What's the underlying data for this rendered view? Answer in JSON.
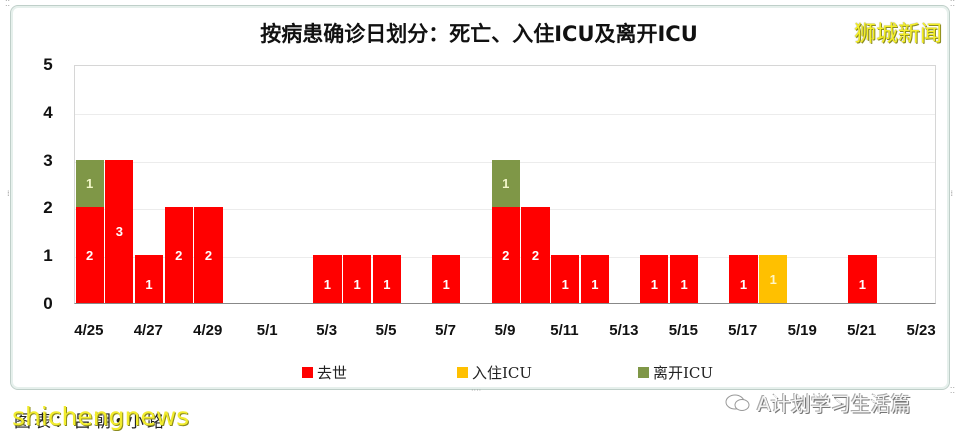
{
  "title": "按病患确诊日划分：死亡、入住ICU及离开ICU",
  "brand_watermark": "狮城新闻",
  "credit": "图表：吕朝•小路",
  "site_watermark": "shichengnews",
  "wechat_watermark": "A计划学习生活篇",
  "colors": {
    "death": "#ff0000",
    "icu_in": "#ffc000",
    "icu_out": "#7f9747"
  },
  "legend": [
    {
      "key": "death",
      "label": "去世",
      "color": "#ff0000"
    },
    {
      "key": "icu_in",
      "label": "入住ICU",
      "color": "#ffc000"
    },
    {
      "key": "icu_out",
      "label": "离开ICU",
      "color": "#7f9747"
    }
  ],
  "chart_data": {
    "type": "bar",
    "stacked": true,
    "title": "按病患确诊日划分：死亡、入住ICU及离开ICU",
    "xlabel": "",
    "ylabel": "",
    "ylim": [
      0,
      5
    ],
    "yticks": [
      "0",
      "1",
      "2",
      "3",
      "4",
      "5"
    ],
    "grid": true,
    "legend_position": "bottom",
    "xtick_labels": [
      "4/25",
      "4/27",
      "4/29",
      "5/1",
      "5/3",
      "5/5",
      "5/7",
      "5/9",
      "5/11",
      "5/13",
      "5/15",
      "5/17",
      "5/19",
      "5/21",
      "5/23"
    ],
    "categories": [
      "4/25",
      "4/26",
      "4/27",
      "4/28",
      "4/29",
      "4/30",
      "5/1",
      "5/2",
      "5/3",
      "5/4",
      "5/5",
      "5/6",
      "5/7",
      "5/8",
      "5/9",
      "5/10",
      "5/11",
      "5/12",
      "5/13",
      "5/14",
      "5/15",
      "5/16",
      "5/17",
      "5/18",
      "5/19",
      "5/20",
      "5/21",
      "5/22",
      "5/23"
    ],
    "series": [
      {
        "name": "去世",
        "color": "#ff0000",
        "values": [
          2,
          3,
          1,
          2,
          2,
          0,
          0,
          0,
          1,
          1,
          1,
          0,
          1,
          0,
          2,
          2,
          1,
          1,
          0,
          1,
          1,
          0,
          1,
          0,
          0,
          0,
          1,
          0,
          0
        ]
      },
      {
        "name": "入住ICU",
        "color": "#ffc000",
        "values": [
          0,
          0,
          0,
          0,
          0,
          0,
          0,
          0,
          0,
          0,
          0,
          0,
          0,
          0,
          0,
          0,
          0,
          0,
          0,
          0,
          0,
          0,
          0,
          1,
          0,
          0,
          0,
          0,
          0
        ]
      },
      {
        "name": "离开ICU",
        "color": "#7f9747",
        "values": [
          1,
          0,
          0,
          0,
          0,
          0,
          0,
          0,
          0,
          0,
          0,
          0,
          0,
          0,
          1,
          0,
          0,
          0,
          0,
          0,
          0,
          0,
          0,
          0,
          0,
          0,
          0,
          0,
          0
        ]
      }
    ]
  }
}
